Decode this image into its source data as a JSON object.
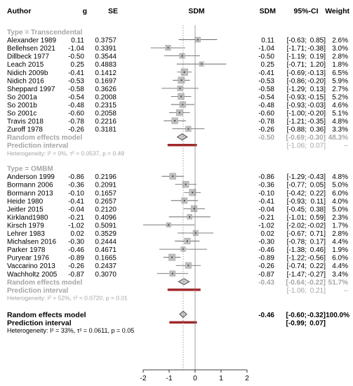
{
  "headers": {
    "author": "Author",
    "g": "g",
    "se": "SE",
    "sdm_plot": "SDM",
    "sdm": "SDM",
    "ci": "95%-CI",
    "weight": "Weight"
  },
  "chart_data": {
    "type": "forest",
    "xlim": [
      -2,
      2
    ],
    "ticks": [
      "-2",
      "-1",
      "0",
      "1",
      "2"
    ],
    "reference_line": 0,
    "dotted_line": -0.46,
    "groups": [
      {
        "label": "Type = Transcendental",
        "studies": [
          {
            "author": "Alexander 1989",
            "g": "0.11",
            "se": "0.3757",
            "sdm": "0.11",
            "ci": "[-0.63; 0.85]",
            "weight": "2.6%",
            "est": 0.11,
            "lo": -0.63,
            "hi": 0.85,
            "w": 2.6
          },
          {
            "author": "Bellehsen 2021",
            "g": "-1.04",
            "se": "0.3391",
            "sdm": "-1.04",
            "ci": "[-1.71; -0.38]",
            "weight": "3.0%",
            "est": -1.04,
            "lo": -1.71,
            "hi": -0.38,
            "w": 3.0
          },
          {
            "author": "Dillbeck 1977",
            "g": "-0.50",
            "se": "0.3544",
            "sdm": "-0.50",
            "ci": "[-1.19; 0.19]",
            "weight": "2.8%",
            "est": -0.5,
            "lo": -1.19,
            "hi": 0.19,
            "w": 2.8
          },
          {
            "author": "Leach 2015",
            "g": "0.25",
            "se": "0.4883",
            "sdm": "0.25",
            "ci": "[-0.71; 1.20]",
            "weight": "1.8%",
            "est": 0.25,
            "lo": -0.71,
            "hi": 1.2,
            "w": 1.8
          },
          {
            "author": "Nidich 2009b",
            "g": "-0.41",
            "se": "0.1412",
            "sdm": "-0.41",
            "ci": "[-0.69; -0.13]",
            "weight": "6.5%",
            "est": -0.41,
            "lo": -0.69,
            "hi": -0.13,
            "w": 6.5
          },
          {
            "author": "Nidich 2016",
            "g": "-0.53",
            "se": "0.1697",
            "sdm": "-0.53",
            "ci": "[-0.86; -0.20]",
            "weight": "5.9%",
            "est": -0.53,
            "lo": -0.86,
            "hi": -0.2,
            "w": 5.9
          },
          {
            "author": "Sheppard 1997",
            "g": "-0.58",
            "se": "0.3626",
            "sdm": "-0.58",
            "ci": "[-1.29; 0.13]",
            "weight": "2.7%",
            "est": -0.58,
            "lo": -1.29,
            "hi": 0.13,
            "w": 2.7
          },
          {
            "author": "So 2001a",
            "g": "-0.54",
            "se": "0.2008",
            "sdm": "-0.54",
            "ci": "[-0.93; -0.15]",
            "weight": "5.2%",
            "est": -0.54,
            "lo": -0.93,
            "hi": -0.15,
            "w": 5.2
          },
          {
            "author": "So 2001b",
            "g": "-0.48",
            "se": "0.2315",
            "sdm": "-0.48",
            "ci": "[-0.93; -0.03]",
            "weight": "4.6%",
            "est": -0.48,
            "lo": -0.93,
            "hi": -0.03,
            "w": 4.6
          },
          {
            "author": "So 2001c",
            "g": "-0.60",
            "se": "0.2058",
            "sdm": "-0.60",
            "ci": "[-1.00; -0.20]",
            "weight": "5.1%",
            "est": -0.6,
            "lo": -1.0,
            "hi": -0.2,
            "w": 5.1
          },
          {
            "author": "Travis 2018",
            "g": "-0.78",
            "se": "0.2216",
            "sdm": "-0.78",
            "ci": "[-1.21; -0.35]",
            "weight": "4.8%",
            "est": -0.78,
            "lo": -1.21,
            "hi": -0.35,
            "w": 4.8
          },
          {
            "author": "Zuroff 1978",
            "g": "-0.26",
            "se": "0.3181",
            "sdm": "-0.26",
            "ci": "[-0.88; 0.36]",
            "weight": "3.3%",
            "est": -0.26,
            "lo": -0.88,
            "hi": 0.36,
            "w": 3.3
          }
        ],
        "random": {
          "label": "Random effects model",
          "sdm": "-0.50",
          "ci": "[-0.69; -0.30]",
          "weight": "48.3%",
          "est": -0.5,
          "lo": -0.69,
          "hi": -0.3
        },
        "prediction": {
          "label": "Prediction interval",
          "ci": "[-1.06; 0.07]",
          "weight": "--",
          "lo": -1.06,
          "hi": 0.07
        },
        "heterogeneity": "Heterogeneity: I² = 0%, τ² = 0.0537, p = 0.49"
      },
      {
        "label": "Type = OMBM",
        "studies": [
          {
            "author": "Anderson 1999",
            "g": "-0.86",
            "se": "0.2196",
            "sdm": "-0.86",
            "ci": "[-1.29; -0.43]",
            "weight": "4.8%",
            "est": -0.86,
            "lo": -1.29,
            "hi": -0.43,
            "w": 4.8
          },
          {
            "author": "Bormann 2006",
            "g": "-0.36",
            "se": "0.2091",
            "sdm": "-0.36",
            "ci": "[-0.77; 0.05]",
            "weight": "5.0%",
            "est": -0.36,
            "lo": -0.77,
            "hi": 0.05,
            "w": 5.0
          },
          {
            "author": "Bormann 2013",
            "g": "-0.10",
            "se": "0.1657",
            "sdm": "-0.10",
            "ci": "[-0.42; 0.22]",
            "weight": "6.0%",
            "est": -0.1,
            "lo": -0.42,
            "hi": 0.22,
            "w": 6.0
          },
          {
            "author": "Heide 1980",
            "g": "-0.41",
            "se": "0.2657",
            "sdm": "-0.41",
            "ci": "[-0.93; 0.11]",
            "weight": "4.0%",
            "est": -0.41,
            "lo": -0.93,
            "hi": 0.11,
            "w": 4.0
          },
          {
            "author": "Jeitler 2015",
            "g": "-0.04",
            "se": "0.2120",
            "sdm": "-0.04",
            "ci": "[-0.45; 0.38]",
            "weight": "5.0%",
            "est": -0.04,
            "lo": -0.45,
            "hi": 0.38,
            "w": 5.0
          },
          {
            "author": "Kirkland1980",
            "g": "-0.21",
            "se": "0.4096",
            "sdm": "-0.21",
            "ci": "[-1.01; 0.59]",
            "weight": "2.3%",
            "est": -0.21,
            "lo": -1.01,
            "hi": 0.59,
            "w": 2.3
          },
          {
            "author": "Kirsch 1979",
            "g": "-1.02",
            "se": "0.5091",
            "sdm": "-1.02",
            "ci": "[-2.02; -0.02]",
            "weight": "1.7%",
            "est": -1.02,
            "lo": -2.02,
            "hi": -0.02,
            "w": 1.7
          },
          {
            "author": "Lehrer 1983",
            "g": "0.02",
            "se": "0.3529",
            "sdm": "0.02",
            "ci": "[-0.67; 0.71]",
            "weight": "2.8%",
            "est": 0.02,
            "lo": -0.67,
            "hi": 0.71,
            "w": 2.8
          },
          {
            "author": "Michalsen 2016",
            "g": "-0.30",
            "se": "0.2444",
            "sdm": "-0.30",
            "ci": "[-0.78; 0.17]",
            "weight": "4.4%",
            "est": -0.3,
            "lo": -0.78,
            "hi": 0.17,
            "w": 4.4
          },
          {
            "author": "Parker 1978",
            "g": "-0.46",
            "se": "0.4671",
            "sdm": "-0.46",
            "ci": "[-1.38; 0.46]",
            "weight": "1.9%",
            "est": -0.46,
            "lo": -1.38,
            "hi": 0.46,
            "w": 1.9
          },
          {
            "author": "Puryear 1976",
            "g": "-0.89",
            "se": "0.1665",
            "sdm": "-0.89",
            "ci": "[-1.22; -0.56]",
            "weight": "6.0%",
            "est": -0.89,
            "lo": -1.22,
            "hi": -0.56,
            "w": 6.0
          },
          {
            "author": "Vaccarino 2013",
            "g": "-0.26",
            "se": "0.2437",
            "sdm": "-0.26",
            "ci": "[-0.74; 0.22]",
            "weight": "4.4%",
            "est": -0.26,
            "lo": -0.74,
            "hi": 0.22,
            "w": 4.4
          },
          {
            "author": "Wachholtz 2005",
            "g": "-0.87",
            "se": "0.3070",
            "sdm": "-0.87",
            "ci": "[-1.47; -0.27]",
            "weight": "3.4%",
            "est": -0.87,
            "lo": -1.47,
            "hi": -0.27,
            "w": 3.4
          }
        ],
        "random": {
          "label": "Random effects model",
          "sdm": "-0.43",
          "ci": "[-0.64; -0.22]",
          "weight": "51.7%",
          "est": -0.43,
          "lo": -0.64,
          "hi": -0.22
        },
        "prediction": {
          "label": "Prediction interval",
          "ci": "[-1.06; 0.21]",
          "weight": "--",
          "lo": -1.06,
          "hi": 0.21
        },
        "heterogeneity": "Heterogeneity: I² = 52%, τ² = 0.0720, p = 0.01"
      }
    ],
    "overall": {
      "random": {
        "label": "Random effects model",
        "sdm": "-0.46",
        "ci": "[-0.60; -0.32]",
        "weight": "100.0%",
        "est": -0.46,
        "lo": -0.6,
        "hi": -0.32
      },
      "prediction": {
        "label": "Prediction interval",
        "ci": "[-0.99; 0.07]",
        "lo": -0.99,
        "hi": 0.07
      },
      "heterogeneity": "Heterogeneity: I² = 33%, τ² = 0.0611, p = 0.05"
    }
  },
  "colors": {
    "text": "#000000",
    "subgroup_gray": "#a6a6a6",
    "box": "#c0c0c0",
    "box_border": "#909090",
    "prediction": "#a0282a",
    "diamond_fill": "#c8c8c8"
  }
}
